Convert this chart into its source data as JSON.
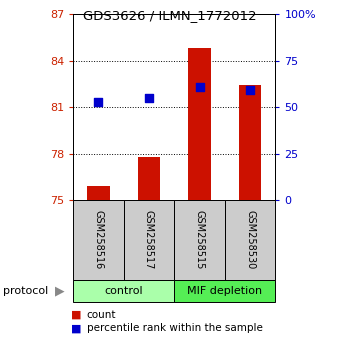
{
  "title": "GDS3626 / ILMN_1772012",
  "samples": [
    "GSM258516",
    "GSM258517",
    "GSM258515",
    "GSM258530"
  ],
  "count_values": [
    75.9,
    77.8,
    84.8,
    82.4
  ],
  "percentile_values": [
    81.3,
    81.6,
    82.3,
    82.1
  ],
  "y_min": 75,
  "y_max": 87,
  "y_ticks_left": [
    75,
    78,
    81,
    84,
    87
  ],
  "y_ticks_right": [
    0,
    25,
    50,
    75,
    100
  ],
  "y_right_labels": [
    "0",
    "25",
    "50",
    "75",
    "100%"
  ],
  "bar_color": "#cc1100",
  "dot_color": "#0000cc",
  "protocol_label": "protocol",
  "legend_count": "count",
  "legend_percentile": "percentile rank within the sample",
  "background_color": "#ffffff",
  "plot_bg_color": "#ffffff",
  "sample_bg_color": "#cccccc",
  "ctrl_color": "#aaffaa",
  "mif_color": "#55ee55",
  "bar_width": 0.45,
  "dot_size": 30
}
